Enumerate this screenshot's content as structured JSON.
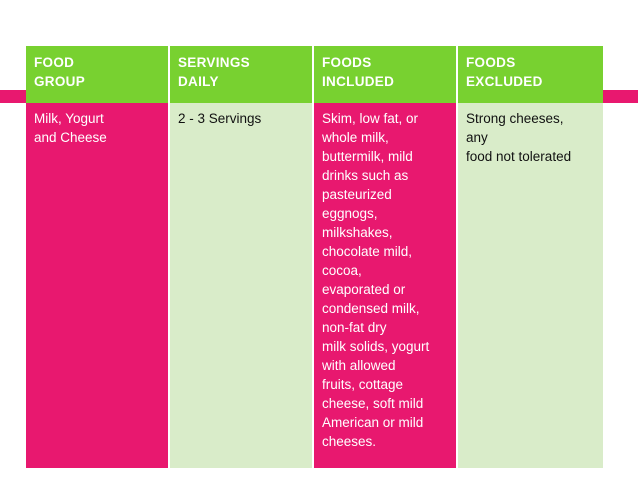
{
  "table": {
    "headers": [
      [
        "FOOD",
        "GROUP"
      ],
      [
        "SERVINGS",
        "DAILY"
      ],
      [
        "FOODS",
        "INCLUDED"
      ],
      [
        "FOODS",
        "EXCLUDED"
      ]
    ],
    "row": {
      "food_group": [
        "Milk, Yogurt",
        "and Cheese"
      ],
      "servings": [
        "2 - 3 Servings"
      ],
      "included": [
        "Skim, low fat, or",
        "whole milk,",
        "buttermilk, mild",
        "drinks such as",
        "pasteurized",
        "eggnogs,",
        "milkshakes,",
        "chocolate mild,",
        "cocoa,",
        "evaporated or",
        "condensed milk,",
        "non-fat dry",
        "milk solids, yogurt",
        "with allowed",
        "fruits, cottage",
        "cheese, soft mild",
        "American or mild",
        "cheeses."
      ],
      "excluded": [
        "Strong cheeses,",
        "any",
        "food not tolerated"
      ]
    }
  },
  "colors": {
    "header_green": "#78d130",
    "accent_pink": "#e8186f",
    "pale_green": "#d9ecc9"
  }
}
